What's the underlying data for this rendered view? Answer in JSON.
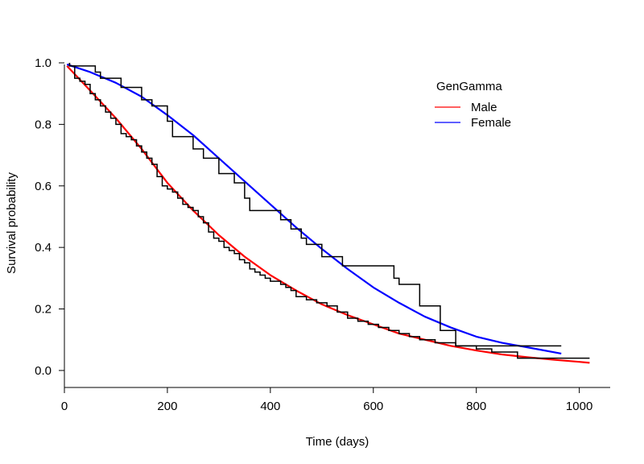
{
  "chart_data": {
    "type": "line",
    "title": "",
    "xlabel": "Time (days)",
    "ylabel": "Survival probability",
    "xlim": [
      0,
      1060
    ],
    "ylim": [
      -0.05,
      1.0
    ],
    "xticks": [
      0,
      200,
      400,
      600,
      800,
      1000
    ],
    "yticks": [
      0.0,
      0.2,
      0.4,
      0.6,
      0.8,
      1.0
    ],
    "ytick_labels": [
      "0.0",
      "0.2",
      "0.4",
      "0.6",
      "0.8",
      "1.0"
    ],
    "grid": false,
    "legend": {
      "title": "GenGamma",
      "position": "top-right",
      "entries": [
        {
          "label": "Male",
          "color": "#ff0000"
        },
        {
          "label": "Female",
          "color": "#0000ff"
        }
      ]
    },
    "series": [
      {
        "name": "Male",
        "kind": "fitted-curve",
        "color": "#ff0000",
        "x": [
          5,
          50,
          100,
          150,
          200,
          250,
          300,
          350,
          400,
          450,
          500,
          550,
          600,
          650,
          700,
          750,
          800,
          850,
          900,
          950,
          1000,
          1020
        ],
        "y": [
          0.99,
          0.91,
          0.82,
          0.72,
          0.61,
          0.52,
          0.44,
          0.37,
          0.31,
          0.26,
          0.215,
          0.18,
          0.15,
          0.12,
          0.1,
          0.08,
          0.065,
          0.052,
          0.043,
          0.035,
          0.028,
          0.025
        ]
      },
      {
        "name": "Female",
        "kind": "fitted-curve",
        "color": "#0000ff",
        "x": [
          5,
          50,
          100,
          150,
          200,
          250,
          300,
          350,
          400,
          450,
          500,
          550,
          600,
          650,
          700,
          750,
          800,
          850,
          900,
          965
        ],
        "y": [
          0.995,
          0.97,
          0.935,
          0.89,
          0.83,
          0.765,
          0.69,
          0.615,
          0.54,
          0.465,
          0.395,
          0.33,
          0.27,
          0.22,
          0.175,
          0.14,
          0.11,
          0.09,
          0.075,
          0.055
        ]
      },
      {
        "name": "",
        "kind": "km-step",
        "color": "#000000",
        "x": [
          10,
          20,
          30,
          40,
          50,
          60,
          70,
          80,
          90,
          100,
          110,
          120,
          130,
          140,
          150,
          160,
          170,
          180,
          190,
          200,
          210,
          220,
          230,
          240,
          250,
          260,
          270,
          280,
          290,
          300,
          310,
          320,
          330,
          340,
          350,
          360,
          370,
          380,
          390,
          400,
          410,
          420,
          430,
          440,
          450,
          470,
          490,
          510,
          530,
          550,
          570,
          590,
          610,
          630,
          650,
          670,
          690,
          720,
          760,
          800,
          830,
          880,
          1020
        ],
        "y": [
          0.99,
          0.95,
          0.94,
          0.93,
          0.9,
          0.88,
          0.86,
          0.84,
          0.82,
          0.8,
          0.77,
          0.76,
          0.75,
          0.73,
          0.71,
          0.69,
          0.67,
          0.63,
          0.6,
          0.59,
          0.58,
          0.56,
          0.54,
          0.53,
          0.52,
          0.5,
          0.48,
          0.45,
          0.43,
          0.42,
          0.4,
          0.39,
          0.38,
          0.36,
          0.35,
          0.33,
          0.32,
          0.31,
          0.3,
          0.29,
          0.29,
          0.28,
          0.27,
          0.26,
          0.24,
          0.23,
          0.22,
          0.21,
          0.19,
          0.17,
          0.16,
          0.15,
          0.14,
          0.13,
          0.12,
          0.11,
          0.1,
          0.09,
          0.08,
          0.07,
          0.06,
          0.04,
          0.04
        ]
      },
      {
        "name": "",
        "kind": "km-step",
        "color": "#000000",
        "x": [
          10,
          60,
          70,
          110,
          150,
          170,
          200,
          210,
          250,
          270,
          300,
          330,
          350,
          360,
          420,
          440,
          460,
          470,
          500,
          540,
          560,
          640,
          650,
          690,
          730,
          760,
          965
        ],
        "y": [
          0.99,
          0.97,
          0.95,
          0.92,
          0.88,
          0.86,
          0.81,
          0.76,
          0.72,
          0.69,
          0.64,
          0.61,
          0.56,
          0.52,
          0.49,
          0.46,
          0.43,
          0.41,
          0.37,
          0.34,
          0.34,
          0.3,
          0.28,
          0.21,
          0.13,
          0.08,
          0.08
        ]
      }
    ]
  }
}
